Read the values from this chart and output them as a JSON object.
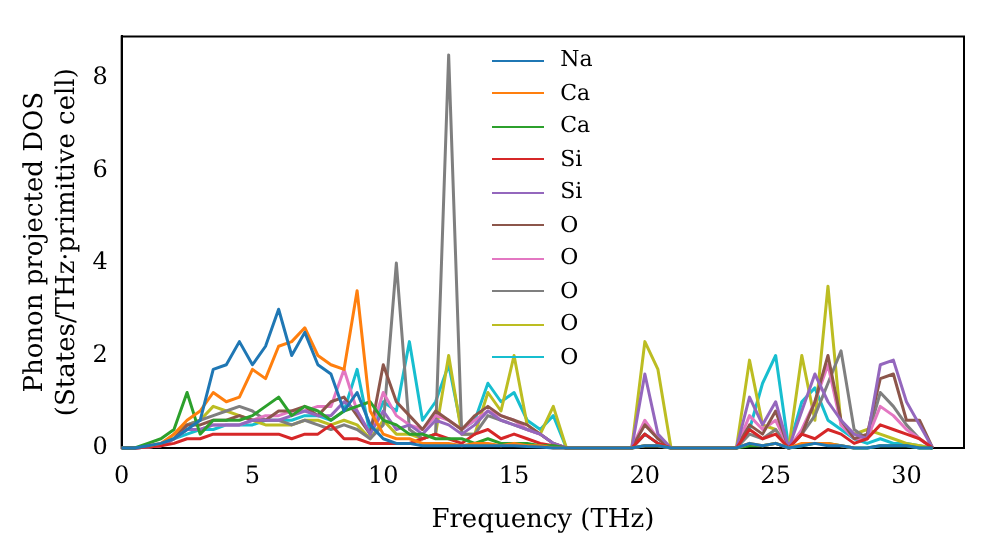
{
  "chart_data": {
    "type": "line",
    "xlabel": "Frequency (THz)",
    "ylabel": "Phonon projected DOS\n(States/THz·primitive cell)",
    "x": [
      0,
      0.5,
      1,
      1.5,
      2,
      2.5,
      3,
      3.5,
      4,
      4.5,
      5,
      5.5,
      6,
      6.5,
      7,
      7.5,
      8,
      8.5,
      9,
      9.5,
      10,
      10.5,
      11,
      11.5,
      12,
      12.5,
      13,
      13.5,
      14,
      14.5,
      15,
      15.5,
      16,
      16.5,
      17,
      17.5,
      18,
      18.5,
      19,
      19.5,
      20,
      20.5,
      21,
      21.5,
      22,
      22.5,
      23,
      23.5,
      24,
      24.5,
      25,
      25.5,
      26,
      26.5,
      27,
      27.5,
      28,
      28.5,
      29,
      29.5,
      30,
      30.5,
      31
    ],
    "xlim": [
      0,
      32.2
    ],
    "xticks": [
      0,
      5,
      10,
      15,
      20,
      25,
      30
    ],
    "ylim": [
      0,
      8.9
    ],
    "yticks": [
      0,
      2,
      4,
      6,
      8
    ],
    "grid": false,
    "legend": "top",
    "marker": "none",
    "line_style": "solid",
    "series": [
      {
        "name": "Na",
        "color": "#1f77b4",
        "values": [
          0,
          0,
          0.05,
          0.1,
          0.2,
          0.4,
          0.6,
          1.7,
          1.8,
          2.3,
          1.8,
          2.2,
          3.0,
          2.0,
          2.5,
          1.8,
          1.6,
          0.8,
          1.2,
          0.5,
          0.2,
          0.1,
          0.1,
          0.05,
          0.05,
          0.05,
          0.05,
          0.05,
          0.05,
          0.05,
          0.05,
          0.03,
          0.02,
          0,
          0,
          0,
          0,
          0,
          0,
          0,
          0.05,
          0.05,
          0,
          0,
          0,
          0,
          0,
          0,
          0.1,
          0.05,
          0.1,
          0,
          0.05,
          0.1,
          0.05,
          0.05,
          0,
          0,
          0.05,
          0.05,
          0.05,
          0,
          0
        ]
      },
      {
        "name": "Ca",
        "color": "#ff7f0e",
        "values": [
          null,
          null,
          0.05,
          0.1,
          0.3,
          0.6,
          0.8,
          1.2,
          1.0,
          1.1,
          1.7,
          1.5,
          2.2,
          2.3,
          2.6,
          2.0,
          1.8,
          1.7,
          3.4,
          0.8,
          0.3,
          0.2,
          0.2,
          0.1,
          0.1,
          0.1,
          0.05,
          0.1,
          0.1,
          0.05,
          0.1,
          0.05,
          0.05,
          0,
          0,
          0,
          0,
          0,
          0,
          0,
          0.05,
          0.05,
          0,
          0,
          0,
          0,
          0,
          0,
          0.1,
          0.05,
          0.1,
          0,
          0.1,
          0.1,
          0.1,
          0.05,
          0,
          null,
          null,
          null,
          null,
          null,
          null
        ]
      },
      {
        "name": "Ca",
        "color": "#2ca02c",
        "values": [
          0,
          0,
          0.1,
          0.2,
          0.4,
          1.2,
          0.3,
          0.6,
          0.6,
          0.6,
          0.7,
          0.9,
          1.1,
          0.7,
          0.9,
          0.8,
          0.6,
          0.8,
          0.9,
          1.0,
          0.6,
          0.5,
          0.3,
          0.3,
          0.2,
          0.2,
          0.2,
          0.1,
          0.2,
          0.1,
          0.1,
          0.1,
          0.05,
          0.05,
          0,
          0,
          0,
          0,
          0,
          0,
          0.05,
          0.05,
          0,
          0,
          0,
          0,
          0,
          0,
          0.05,
          0.05,
          0.1,
          0,
          0.05,
          0.1,
          0.1,
          0.05,
          0,
          0,
          0.05,
          0.05,
          0.05,
          0,
          0
        ]
      },
      {
        "name": "Si",
        "color": "#d62728",
        "values": [
          0,
          0,
          0.02,
          0.05,
          0.1,
          0.2,
          0.2,
          0.3,
          0.3,
          0.3,
          0.3,
          0.3,
          0.3,
          0.2,
          0.3,
          0.3,
          0.5,
          0.2,
          0.2,
          0.1,
          0.1,
          0.1,
          0.1,
          0.2,
          0.3,
          0.2,
          0.1,
          0.3,
          0.4,
          0.2,
          0.3,
          0.2,
          0.1,
          0.05,
          0,
          0,
          0,
          0,
          0,
          0,
          0.3,
          0.1,
          0,
          0,
          0,
          0,
          0,
          0,
          0.4,
          0.2,
          0.3,
          0,
          0.3,
          0.2,
          0.4,
          0.3,
          0.1,
          0.2,
          0.5,
          0.4,
          0.3,
          0.2,
          0
        ]
      },
      {
        "name": "Si",
        "color": "#9467bd",
        "values": [
          0,
          0,
          0.02,
          0.05,
          0.2,
          0.4,
          0.4,
          0.5,
          0.5,
          0.5,
          0.6,
          0.6,
          0.6,
          0.7,
          0.8,
          0.7,
          0.7,
          1.0,
          0.8,
          0.3,
          0.8,
          0.4,
          0.5,
          0.3,
          0.6,
          0.5,
          0.3,
          0.5,
          0.8,
          0.6,
          0.5,
          0.4,
          0.3,
          0.1,
          0,
          0,
          0,
          0,
          0,
          0,
          1.6,
          0.3,
          0,
          0,
          0,
          0,
          0,
          0,
          1.1,
          0.5,
          1.0,
          0,
          0.8,
          1.6,
          1.0,
          0.6,
          0.3,
          0.2,
          1.8,
          1.9,
          1.0,
          0.5,
          0
        ]
      },
      {
        "name": "O",
        "color": "#8c564b",
        "values": [
          0,
          0,
          0.02,
          0.05,
          0.2,
          0.5,
          0.5,
          0.6,
          0.6,
          0.7,
          0.6,
          0.6,
          0.8,
          0.8,
          0.9,
          0.7,
          1.0,
          1.1,
          0.7,
          0.3,
          1.8,
          1.0,
          0.7,
          0.4,
          0.8,
          0.6,
          0.4,
          0.7,
          0.9,
          0.7,
          0.6,
          0.5,
          0.3,
          0.1,
          0,
          0,
          0,
          0,
          0,
          0,
          0.5,
          0.2,
          0,
          0,
          0,
          0,
          0,
          0,
          0.5,
          0.3,
          0.8,
          0,
          0.3,
          1.0,
          2.0,
          0.6,
          0.2,
          0.3,
          1.5,
          1.6,
          0.6,
          0.6,
          0
        ]
      },
      {
        "name": "O",
        "color": "#e377c2",
        "values": [
          0,
          0,
          0.02,
          0.05,
          0.2,
          0.4,
          0.4,
          0.5,
          0.5,
          0.5,
          0.6,
          0.7,
          0.7,
          0.8,
          0.8,
          0.9,
          0.9,
          1.7,
          0.8,
          0.3,
          1.2,
          0.7,
          0.5,
          0.4,
          0.7,
          0.6,
          0.4,
          0.6,
          0.8,
          0.7,
          0.6,
          0.4,
          0.3,
          0.1,
          0,
          0,
          0,
          0,
          0,
          0,
          0.6,
          0.2,
          0,
          0,
          0,
          0,
          0,
          0,
          0.7,
          0.4,
          0.6,
          0,
          0.4,
          1.0,
          1.8,
          0.5,
          0.2,
          0.2,
          0.9,
          0.7,
          0.4,
          0.2,
          0
        ]
      },
      {
        "name": "O",
        "color": "#7f7f7f",
        "values": [
          0,
          0,
          0.02,
          0.05,
          0.2,
          0.5,
          0.6,
          0.7,
          0.8,
          0.9,
          0.8,
          0.6,
          0.6,
          0.5,
          0.6,
          0.5,
          0.4,
          0.5,
          0.4,
          0.2,
          0.5,
          4.0,
          0.4,
          0.2,
          0.3,
          8.5,
          0.3,
          0.3,
          0.7,
          0.6,
          0.5,
          0.4,
          0.3,
          0.1,
          0,
          0,
          0,
          0,
          0,
          0,
          0.3,
          0.1,
          0,
          0,
          0,
          0,
          0,
          0,
          0.3,
          0.2,
          0.4,
          0,
          0.3,
          0.7,
          1.4,
          2.1,
          0.4,
          0.2,
          1.2,
          0.9,
          0.5,
          0.2,
          0
        ]
      },
      {
        "name": "O",
        "color": "#bcbd22",
        "values": [
          null,
          null,
          null,
          0.05,
          0.3,
          0.5,
          0.6,
          0.9,
          0.8,
          0.7,
          0.6,
          0.5,
          0.5,
          0.5,
          0.6,
          0.6,
          0.5,
          0.6,
          0.5,
          0.2,
          0.6,
          0.3,
          0.3,
          0.2,
          0.3,
          2.0,
          0.3,
          0.3,
          1.2,
          0.8,
          2.0,
          0.5,
          0.3,
          0.9,
          0,
          0,
          0,
          0,
          0,
          0,
          2.3,
          1.7,
          0,
          0,
          0,
          0,
          0,
          0,
          1.9,
          0.5,
          0.4,
          0,
          2.0,
          0.6,
          3.5,
          0.5,
          0.3,
          0.4,
          0.3,
          0.2,
          0.1,
          0.05,
          0
        ]
      },
      {
        "name": "O",
        "color": "#17becf",
        "values": [
          null,
          null,
          null,
          0.05,
          0.2,
          0.3,
          0.4,
          0.4,
          0.5,
          0.5,
          0.5,
          0.6,
          0.6,
          0.6,
          0.7,
          0.7,
          0.6,
          0.8,
          1.7,
          0.3,
          1.0,
          0.8,
          2.3,
          0.6,
          1.0,
          1.8,
          0.4,
          0.6,
          1.4,
          1.0,
          1.2,
          0.6,
          0.4,
          0.7,
          0,
          0,
          0,
          0,
          0,
          0,
          0.3,
          0.1,
          0,
          0,
          0,
          0,
          0,
          0,
          0.4,
          1.4,
          2.0,
          0,
          1.0,
          1.3,
          0.6,
          0.4,
          0.2,
          0.1,
          0.2,
          0.1,
          0.1,
          0.05,
          0
        ]
      }
    ]
  }
}
